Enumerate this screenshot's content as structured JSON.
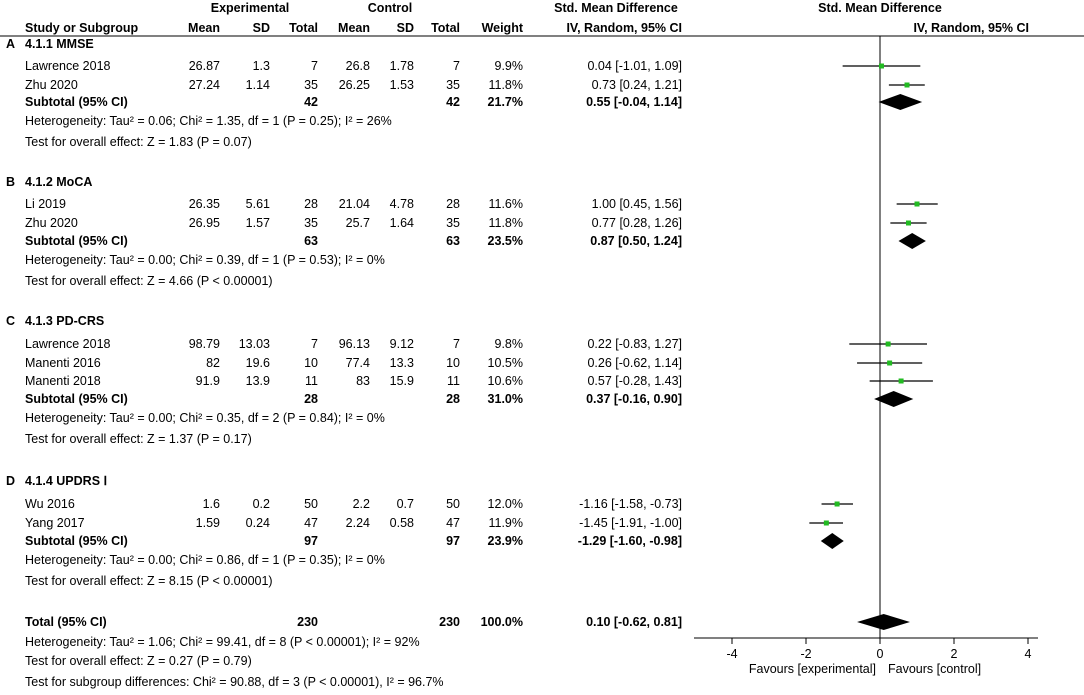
{
  "headers": {
    "experimental": "Experimental",
    "control": "Control",
    "smd_table": "Std. Mean Difference",
    "smd_table_sub": "IV, Random, 95% CI",
    "smd_plot": "Std. Mean Difference",
    "smd_plot_sub": "IV, Random, 95% CI",
    "study": "Study or Subgroup",
    "mean_e": "Mean",
    "sd_e": "SD",
    "total_e": "Total",
    "mean_c": "Mean",
    "sd_c": "SD",
    "total_c": "Total",
    "weight": "Weight"
  },
  "groups": [
    {
      "letter": "A",
      "title": "4.1.1 MMSE",
      "studies": [
        {
          "name": "Lawrence 2018",
          "mean_e": "26.87",
          "sd_e": "1.3",
          "total_e": "7",
          "mean_c": "26.8",
          "sd_c": "1.78",
          "total_c": "7",
          "weight": "9.9%",
          "ci": "0.04 [-1.01, 1.09]"
        },
        {
          "name": "Zhu 2020",
          "mean_e": "27.24",
          "sd_e": "1.14",
          "total_e": "35",
          "mean_c": "26.25",
          "sd_c": "1.53",
          "total_c": "35",
          "weight": "11.8%",
          "ci": "0.73 [0.24, 1.21]"
        }
      ],
      "subtotal": {
        "label": "Subtotal (95% CI)",
        "total_e": "42",
        "total_c": "42",
        "weight": "21.7%",
        "ci": "0.55 [-0.04, 1.14]"
      },
      "heterogeneity": "Heterogeneity: Tau² = 0.06; Chi² = 1.35, df = 1 (P = 0.25); I² = 26%",
      "overall": "Test for overall effect: Z = 1.83 (P = 0.07)"
    },
    {
      "letter": "B",
      "title": "4.1.2 MoCA",
      "studies": [
        {
          "name": "Li 2019",
          "mean_e": "26.35",
          "sd_e": "5.61",
          "total_e": "28",
          "mean_c": "21.04",
          "sd_c": "4.78",
          "total_c": "28",
          "weight": "11.6%",
          "ci": "1.00 [0.45, 1.56]"
        },
        {
          "name": "Zhu 2020",
          "mean_e": "26.95",
          "sd_e": "1.57",
          "total_e": "35",
          "mean_c": "25.7",
          "sd_c": "1.64",
          "total_c": "35",
          "weight": "11.8%",
          "ci": "0.77 [0.28, 1.26]"
        }
      ],
      "subtotal": {
        "label": "Subtotal (95% CI)",
        "total_e": "63",
        "total_c": "63",
        "weight": "23.5%",
        "ci": "0.87 [0.50, 1.24]"
      },
      "heterogeneity": "Heterogeneity: Tau² = 0.00; Chi² = 0.39, df = 1 (P = 0.53); I² = 0%",
      "overall": "Test for overall effect: Z = 4.66 (P < 0.00001)"
    },
    {
      "letter": "C",
      "title": "4.1.3 PD-CRS",
      "studies": [
        {
          "name": "Lawrence 2018",
          "mean_e": "98.79",
          "sd_e": "13.03",
          "total_e": "7",
          "mean_c": "96.13",
          "sd_c": "9.12",
          "total_c": "7",
          "weight": "9.8%",
          "ci": "0.22 [-0.83, 1.27]"
        },
        {
          "name": "Manenti 2016",
          "mean_e": "82",
          "sd_e": "19.6",
          "total_e": "10",
          "mean_c": "77.4",
          "sd_c": "13.3",
          "total_c": "10",
          "weight": "10.5%",
          "ci": "0.26 [-0.62, 1.14]"
        },
        {
          "name": "Manenti 2018",
          "mean_e": "91.9",
          "sd_e": "13.9",
          "total_e": "11",
          "mean_c": "83",
          "sd_c": "15.9",
          "total_c": "11",
          "weight": "10.6%",
          "ci": "0.57 [-0.28, 1.43]"
        }
      ],
      "subtotal": {
        "label": "Subtotal (95% CI)",
        "total_e": "28",
        "total_c": "28",
        "weight": "31.0%",
        "ci": "0.37 [-0.16, 0.90]"
      },
      "heterogeneity": "Heterogeneity: Tau² = 0.00; Chi² = 0.35, df = 2 (P = 0.84); I² = 0%",
      "overall": "Test for overall effect: Z = 1.37 (P = 0.17)"
    },
    {
      "letter": "D",
      "title": "4.1.4 UPDRS Ⅰ",
      "studies": [
        {
          "name": "Wu 2016",
          "mean_e": "1.6",
          "sd_e": "0.2",
          "total_e": "50",
          "mean_c": "2.2",
          "sd_c": "0.7",
          "total_c": "50",
          "weight": "12.0%",
          "ci": "-1.16 [-1.58, -0.73]"
        },
        {
          "name": "Yang 2017",
          "mean_e": "1.59",
          "sd_e": "0.24",
          "total_e": "47",
          "mean_c": "2.24",
          "sd_c": "0.58",
          "total_c": "47",
          "weight": "11.9%",
          "ci": "-1.45 [-1.91, -1.00]"
        }
      ],
      "subtotal": {
        "label": "Subtotal (95% CI)",
        "total_e": "97",
        "total_c": "97",
        "weight": "23.9%",
        "ci": "-1.29 [-1.60, -0.98]"
      },
      "heterogeneity": "Heterogeneity: Tau² = 0.00; Chi² = 0.86, df = 1 (P = 0.35); I² = 0%",
      "overall": "Test for overall effect: Z = 8.15 (P < 0.00001)"
    }
  ],
  "total": {
    "label": "Total (95% CI)",
    "total_e": "230",
    "total_c": "230",
    "weight": "100.0%",
    "ci": "0.10 [-0.62, 0.81]"
  },
  "footer": [
    "Heterogeneity: Tau² = 1.06; Chi² = 99.41, df = 8 (P < 0.00001); I² = 92%",
    "Test for overall effect: Z = 0.27 (P = 0.79)",
    "Test for subgroup differences: Chi² = 90.88, df = 3 (P < 0.00001), I² = 96.7%"
  ],
  "colors": {
    "study_marker": "#22bb22",
    "diamond": "#000000",
    "line": "#000000"
  },
  "chart_data": {
    "type": "forest",
    "xlim": [
      -4,
      4
    ],
    "x_ticks": [
      "-4",
      "-2",
      "0",
      "2",
      "4"
    ],
    "favours_left": "Favours [experimental]",
    "favours_right": "Favours [control]",
    "rows": [
      {
        "group": "A",
        "study": "Lawrence 2018",
        "kind": "study",
        "est": 0.04,
        "lo": -1.01,
        "hi": 1.09
      },
      {
        "group": "A",
        "study": "Zhu 2020",
        "kind": "study",
        "est": 0.73,
        "lo": 0.24,
        "hi": 1.21
      },
      {
        "group": "A",
        "study": "Subtotal (95% CI)",
        "kind": "diamond",
        "est": 0.55,
        "lo": -0.04,
        "hi": 1.14
      },
      {
        "group": "B",
        "study": "Li 2019",
        "kind": "study",
        "est": 1.0,
        "lo": 0.45,
        "hi": 1.56
      },
      {
        "group": "B",
        "study": "Zhu 2020",
        "kind": "study",
        "est": 0.77,
        "lo": 0.28,
        "hi": 1.26
      },
      {
        "group": "B",
        "study": "Subtotal (95% CI)",
        "kind": "diamond",
        "est": 0.87,
        "lo": 0.5,
        "hi": 1.24
      },
      {
        "group": "C",
        "study": "Lawrence 2018",
        "kind": "study",
        "est": 0.22,
        "lo": -0.83,
        "hi": 1.27
      },
      {
        "group": "C",
        "study": "Manenti 2016",
        "kind": "study",
        "est": 0.26,
        "lo": -0.62,
        "hi": 1.14
      },
      {
        "group": "C",
        "study": "Manenti 2018",
        "kind": "study",
        "est": 0.57,
        "lo": -0.28,
        "hi": 1.43
      },
      {
        "group": "C",
        "study": "Subtotal (95% CI)",
        "kind": "diamond",
        "est": 0.37,
        "lo": -0.16,
        "hi": 0.9
      },
      {
        "group": "D",
        "study": "Wu 2016",
        "kind": "study",
        "est": -1.16,
        "lo": -1.58,
        "hi": -0.73
      },
      {
        "group": "D",
        "study": "Yang 2017",
        "kind": "study",
        "est": -1.45,
        "lo": -1.91,
        "hi": -1.0
      },
      {
        "group": "D",
        "study": "Subtotal (95% CI)",
        "kind": "diamond",
        "est": -1.29,
        "lo": -1.6,
        "hi": -0.98
      },
      {
        "group": "Total",
        "study": "Total (95% CI)",
        "kind": "diamond",
        "est": 0.1,
        "lo": -0.62,
        "hi": 0.81
      }
    ]
  }
}
